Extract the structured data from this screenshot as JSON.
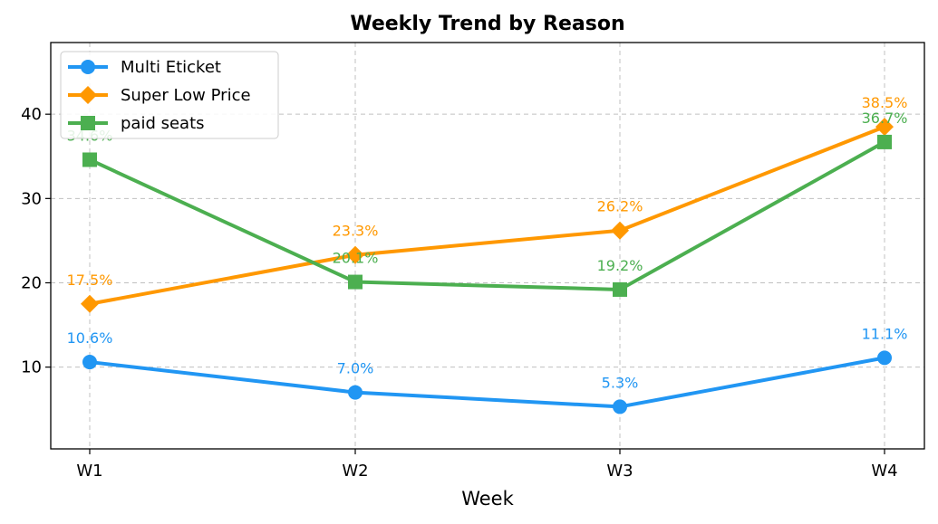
{
  "chart_data": {
    "type": "line",
    "title": "Weekly Trend by Reason",
    "xlabel": "Week",
    "ylabel": "",
    "categories": [
      "W1",
      "W2",
      "W3",
      "W4"
    ],
    "ylim": [
      0.3,
      48.5
    ],
    "yticks": [
      10,
      20,
      30,
      40
    ],
    "grid": true,
    "legend_position": "top-left",
    "series": [
      {
        "name": "Multi Eticket",
        "color": "#2196F3",
        "marker": "circle",
        "values": [
          10.6,
          7.0,
          5.3,
          11.1
        ],
        "labels": [
          "10.6%",
          "7.0%",
          "5.3%",
          "11.1%"
        ]
      },
      {
        "name": "Super Low Price",
        "color": "#FF9800",
        "marker": "diamond",
        "values": [
          17.5,
          23.3,
          26.2,
          38.5
        ],
        "labels": [
          "17.5%",
          "23.3%",
          "26.2%",
          "38.5%"
        ]
      },
      {
        "name": "paid seats",
        "color": "#4CAF50",
        "marker": "square",
        "values": [
          34.6,
          20.1,
          19.2,
          36.7
        ],
        "labels": [
          "34.6%",
          "20.1%",
          "19.2%",
          "36.7%"
        ]
      }
    ]
  }
}
